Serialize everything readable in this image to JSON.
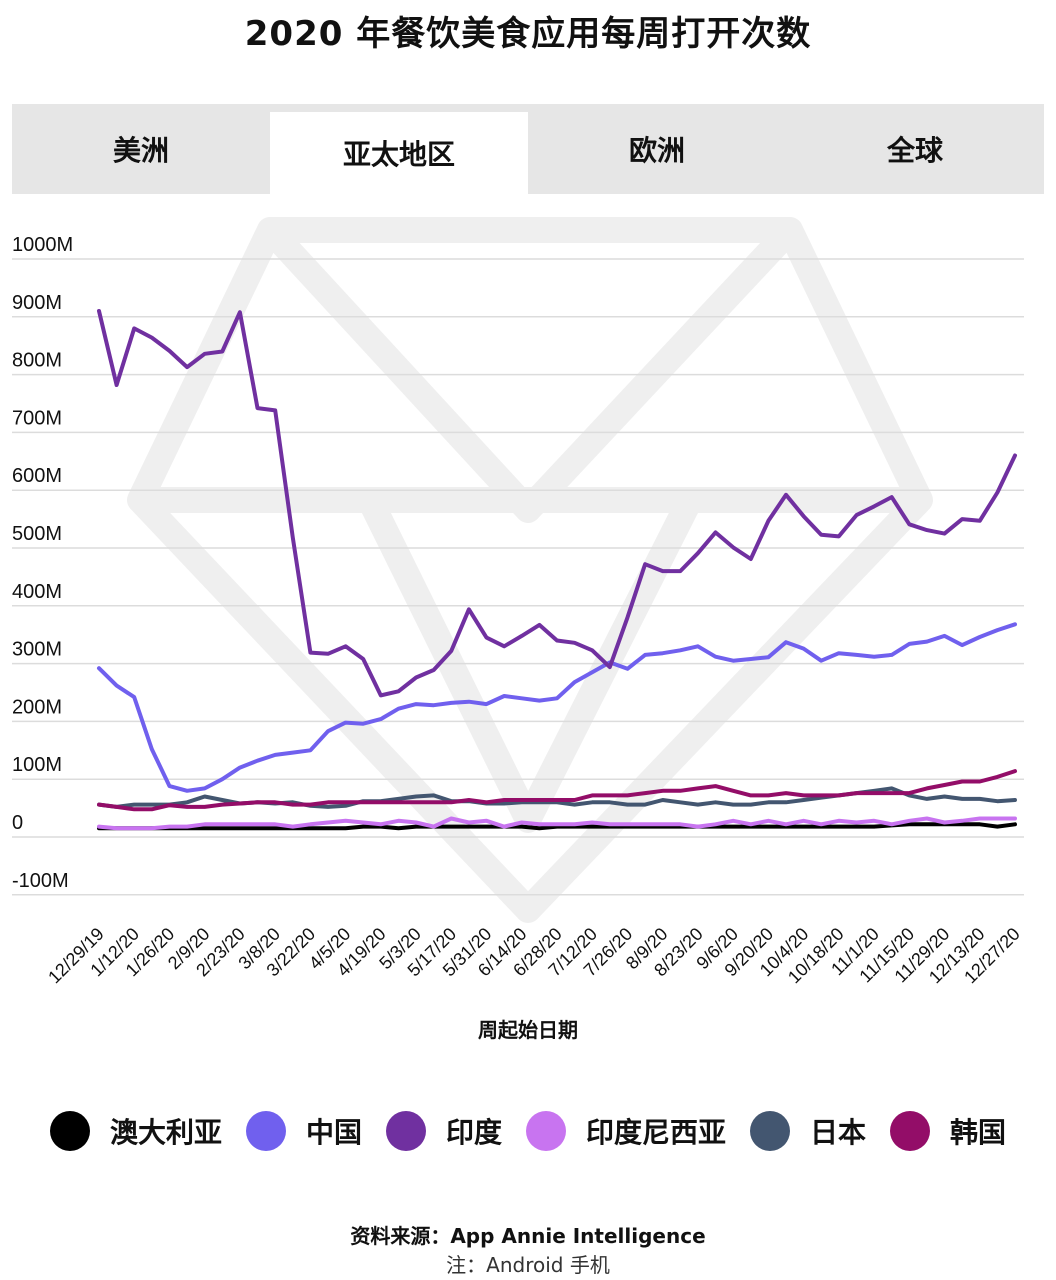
{
  "title": "2020 年餐饮美食应用每周打开次数",
  "tabs": [
    {
      "label": "美洲",
      "active": false
    },
    {
      "label": "亚太地区",
      "active": true
    },
    {
      "label": "欧洲",
      "active": false
    },
    {
      "label": "全球",
      "active": false
    }
  ],
  "footer": {
    "source": "资料来源：App Annie Intelligence",
    "note": "注：Android 手机"
  },
  "chart_data": {
    "type": "line",
    "title": "2020 年餐饮美食应用每周打开次数",
    "xlabel": "周起始日期",
    "ylabel": "",
    "ylim": [
      -100,
      1000
    ],
    "ytick_values": [
      -100,
      0,
      100,
      200,
      300,
      400,
      500,
      600,
      700,
      800,
      900,
      1000
    ],
    "ytick_labels": [
      "-100M",
      "0",
      "100M",
      "200M",
      "300M",
      "400M",
      "500M",
      "600M",
      "700M",
      "800M",
      "900M",
      "1000M"
    ],
    "y_unit": "M",
    "grid": true,
    "legend_position": "bottom",
    "x_tick_labels": [
      "12/29/19",
      "1/12/20",
      "1/26/20",
      "2/9/20",
      "2/23/20",
      "3/8/20",
      "3/22/20",
      "4/5/20",
      "4/19/20",
      "5/3/20",
      "5/17/20",
      "5/31/20",
      "6/14/20",
      "6/28/20",
      "7/12/20",
      "7/26/20",
      "8/9/20",
      "8/23/20",
      "9/6/20",
      "9/20/20",
      "10/4/20",
      "10/18/20",
      "11/1/20",
      "11/15/20",
      "11/29/20",
      "12/13/20",
      "12/27/20"
    ],
    "x": [
      "12/29/19",
      "1/5/20",
      "1/12/20",
      "1/19/20",
      "1/26/20",
      "2/2/20",
      "2/9/20",
      "2/16/20",
      "2/23/20",
      "3/1/20",
      "3/8/20",
      "3/15/20",
      "3/22/20",
      "3/29/20",
      "4/5/20",
      "4/12/20",
      "4/19/20",
      "4/26/20",
      "5/3/20",
      "5/10/20",
      "5/17/20",
      "5/24/20",
      "5/31/20",
      "6/7/20",
      "6/14/20",
      "6/21/20",
      "6/28/20",
      "7/5/20",
      "7/12/20",
      "7/19/20",
      "7/26/20",
      "8/2/20",
      "8/9/20",
      "8/16/20",
      "8/23/20",
      "8/30/20",
      "9/6/20",
      "9/13/20",
      "9/20/20",
      "9/27/20",
      "10/4/20",
      "10/11/20",
      "10/18/20",
      "10/25/20",
      "11/1/20",
      "11/8/20",
      "11/15/20",
      "11/22/20",
      "11/29/20",
      "12/6/20",
      "12/13/20",
      "12/20/20",
      "12/27/20"
    ],
    "series": [
      {
        "name": "澳大利亚",
        "color": "#000000",
        "values": [
          15,
          15,
          15,
          15,
          15,
          15,
          15,
          15,
          15,
          15,
          15,
          15,
          15,
          15,
          15,
          18,
          18,
          15,
          18,
          18,
          18,
          18,
          18,
          18,
          18,
          15,
          18,
          18,
          18,
          18,
          18,
          18,
          18,
          18,
          18,
          18,
          18,
          18,
          18,
          18,
          18,
          18,
          18,
          18,
          18,
          20,
          22,
          22,
          22,
          22,
          22,
          18,
          22
        ]
      },
      {
        "name": "中国",
        "color": "#7060ee",
        "values": [
          292,
          262,
          242,
          152,
          88,
          80,
          84,
          100,
          120,
          132,
          142,
          146,
          150,
          183,
          198,
          196,
          204,
          222,
          230,
          228,
          232,
          234,
          230,
          244,
          240,
          236,
          240,
          268,
          285,
          302,
          291,
          315,
          318,
          323,
          330,
          312,
          305,
          308,
          311,
          337,
          326,
          305,
          318,
          315,
          312,
          315,
          334,
          338,
          348,
          332,
          346,
          358,
          368
        ]
      },
      {
        "name": "印度",
        "color": "#7030a0",
        "values": [
          910,
          782,
          880,
          864,
          841,
          813,
          836,
          840,
          908,
          742,
          738,
          518,
          319,
          317,
          330,
          308,
          245,
          252,
          276,
          289,
          322,
          394,
          345,
          330,
          348,
          367,
          340,
          336,
          323,
          294,
          380,
          472,
          460,
          460,
          491,
          527,
          501,
          481,
          547,
          592,
          555,
          523,
          520,
          557,
          572,
          588,
          541,
          531,
          525,
          550,
          547,
          596,
          660
        ]
      },
      {
        "name": "印度尼西亚",
        "color": "#c874f0",
        "values": [
          18,
          15,
          15,
          15,
          18,
          18,
          22,
          22,
          22,
          22,
          22,
          18,
          22,
          25,
          28,
          25,
          22,
          28,
          25,
          18,
          32,
          25,
          28,
          18,
          25,
          22,
          22,
          22,
          25,
          22,
          22,
          22,
          22,
          22,
          18,
          22,
          28,
          22,
          28,
          22,
          28,
          22,
          28,
          25,
          28,
          22,
          28,
          32,
          25,
          28,
          32,
          32,
          32
        ]
      },
      {
        "name": "日本",
        "color": "#435670",
        "values": [
          56,
          52,
          56,
          56,
          56,
          60,
          70,
          64,
          58,
          60,
          58,
          60,
          54,
          52,
          54,
          62,
          62,
          66,
          70,
          72,
          62,
          62,
          58,
          58,
          60,
          60,
          60,
          56,
          60,
          60,
          56,
          56,
          64,
          60,
          56,
          60,
          56,
          56,
          60,
          60,
          64,
          68,
          72,
          76,
          80,
          84,
          72,
          66,
          70,
          66,
          66,
          62,
          64
        ]
      },
      {
        "name": "韩国",
        "color": "#930d68",
        "values": [
          56,
          52,
          48,
          48,
          55,
          52,
          52,
          56,
          58,
          60,
          60,
          56,
          56,
          60,
          60,
          60,
          60,
          60,
          60,
          60,
          60,
          64,
          60,
          64,
          64,
          64,
          64,
          64,
          72,
          72,
          72,
          76,
          80,
          80,
          84,
          88,
          80,
          72,
          72,
          76,
          72,
          72,
          72,
          76,
          76,
          76,
          76,
          84,
          90,
          96,
          96,
          104,
          114
        ]
      }
    ]
  }
}
